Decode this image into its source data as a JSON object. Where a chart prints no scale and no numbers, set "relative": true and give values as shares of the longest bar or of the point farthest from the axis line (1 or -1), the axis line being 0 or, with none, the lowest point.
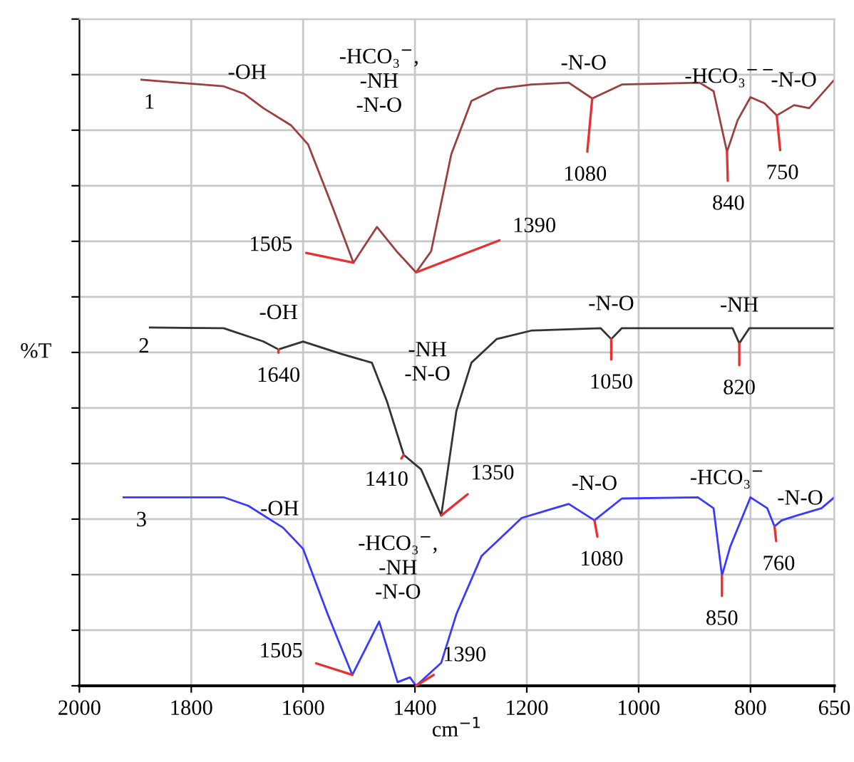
{
  "chart_data": {
    "type": "line",
    "relative": true,
    "xlabel": "cm$^{−1}$",
    "ylabel": "%T",
    "xlim": [
      2000,
      650
    ],
    "xticks": [
      2000,
      1800,
      1600,
      1400,
      1200,
      1000,
      800,
      650
    ],
    "grid": true,
    "marker": "none",
    "line_style": "solid",
    "series": [
      {
        "name": "1",
        "color": "#9b3f3f",
        "x": [
          1889,
          1742,
          1706,
          1671,
          1622,
          1591,
          1547,
          1510,
          1468,
          1433,
          1398,
          1371,
          1335,
          1299,
          1254,
          1191,
          1125,
          1083,
          1030,
          891,
          866,
          842,
          823,
          800,
          775,
          753,
          722,
          695,
          650
        ],
        "values": [
          1.0,
          0.989,
          0.977,
          0.953,
          0.925,
          0.893,
          0.789,
          0.698,
          0.757,
          0.717,
          0.682,
          0.717,
          0.877,
          0.965,
          0.985,
          0.992,
          0.995,
          0.969,
          0.992,
          0.995,
          0.981,
          0.881,
          0.933,
          0.971,
          0.961,
          0.941,
          0.958,
          0.953,
          1.0
        ]
      },
      {
        "name": "2",
        "color": "#333333",
        "x": [
          1874,
          1742,
          1671,
          1644,
          1600,
          1530,
          1477,
          1450,
          1420,
          1389,
          1353,
          1326,
          1299,
          1254,
          1192,
          1068,
          1049,
          1030,
          832,
          820,
          802,
          650
        ],
        "values": [
          0.591,
          0.59,
          0.568,
          0.555,
          0.568,
          0.547,
          0.533,
          0.469,
          0.381,
          0.357,
          0.281,
          0.453,
          0.533,
          0.572,
          0.586,
          0.59,
          0.572,
          0.59,
          0.59,
          0.565,
          0.59,
          0.59
        ]
      },
      {
        "name": "3",
        "color": "#3a3aff",
        "x": [
          1921,
          1742,
          1698,
          1636,
          1600,
          1556,
          1512,
          1464,
          1431,
          1409,
          1398,
          1353,
          1326,
          1281,
          1209,
          1125,
          1079,
          1030,
          894,
          866,
          851,
          836,
          800,
          770,
          757,
          744,
          717,
          673,
          650
        ],
        "values": [
          0.311,
          0.311,
          0.297,
          0.261,
          0.226,
          0.118,
          0.018,
          0.106,
          0.006,
          0.014,
          0.0,
          0.038,
          0.118,
          0.214,
          0.277,
          0.3,
          0.273,
          0.309,
          0.311,
          0.293,
          0.182,
          0.23,
          0.311,
          0.293,
          0.263,
          0.273,
          0.281,
          0.293,
          0.311
        ]
      }
    ],
    "annotations": [
      {
        "text": "-OH",
        "x": 1700,
        "y": 0.977
      },
      "-HCO₃$^{−}$,\n-NH\n-N-O",
      {
        "text": "-N-O",
        "x": 1083,
        "y": 0.969
      },
      {
        "text": "1080",
        "x": 1083,
        "y": 0.969
      },
      {
        "text": "-HCO₃$^{−−}$",
        "x": 842,
        "y": 0.881
      },
      {
        "text": "840",
        "x": 842,
        "y": 0.881
      },
      {
        "text": "-N-O",
        "x": 753,
        "y": 0.941
      },
      {
        "text": "750",
        "x": 753,
        "y": 0.941
      },
      {
        "text": "1505",
        "x": 1510,
        "y": 0.698
      },
      {
        "text": "1390",
        "x": 1398,
        "y": 0.682
      },
      {
        "text": "-OH",
        "x": 1644,
        "y": 0.555
      },
      {
        "text": "1640",
        "x": 1644,
        "y": 0.555
      },
      "-NH\n-N-O",
      {
        "text": "1410",
        "x": 1420,
        "y": 0.381
      },
      {
        "text": "1350",
        "x": 1353,
        "y": 0.281
      },
      {
        "text": "-N-O",
        "x": 1049,
        "y": 0.572
      },
      {
        "text": "1050",
        "x": 1049,
        "y": 0.572
      },
      {
        "text": "-NH",
        "x": 820,
        "y": 0.565
      },
      {
        "text": "820",
        "x": 820,
        "y": 0.565
      },
      {
        "text": "-OH",
        "x": 1698,
        "y": 0.297
      },
      "-HCO₃$^{−}$,\n-NH\n-N-O",
      {
        "text": "-N-O",
        "x": 1079,
        "y": 0.273
      },
      {
        "text": "1080",
        "x": 1079,
        "y": 0.273
      },
      "-HCO₃$^{−}$",
      {
        "text": "-N-O",
        "x": 757,
        "y": 0.263
      },
      {
        "text": "760",
        "x": 757,
        "y": 0.263
      },
      {
        "text": "850",
        "x": 851,
        "y": 0.182
      },
      {
        "text": "1505",
        "x": 1512,
        "y": 0.018
      },
      {
        "text": "1390",
        "x": 1398,
        "y": 0.0
      }
    ]
  }
}
